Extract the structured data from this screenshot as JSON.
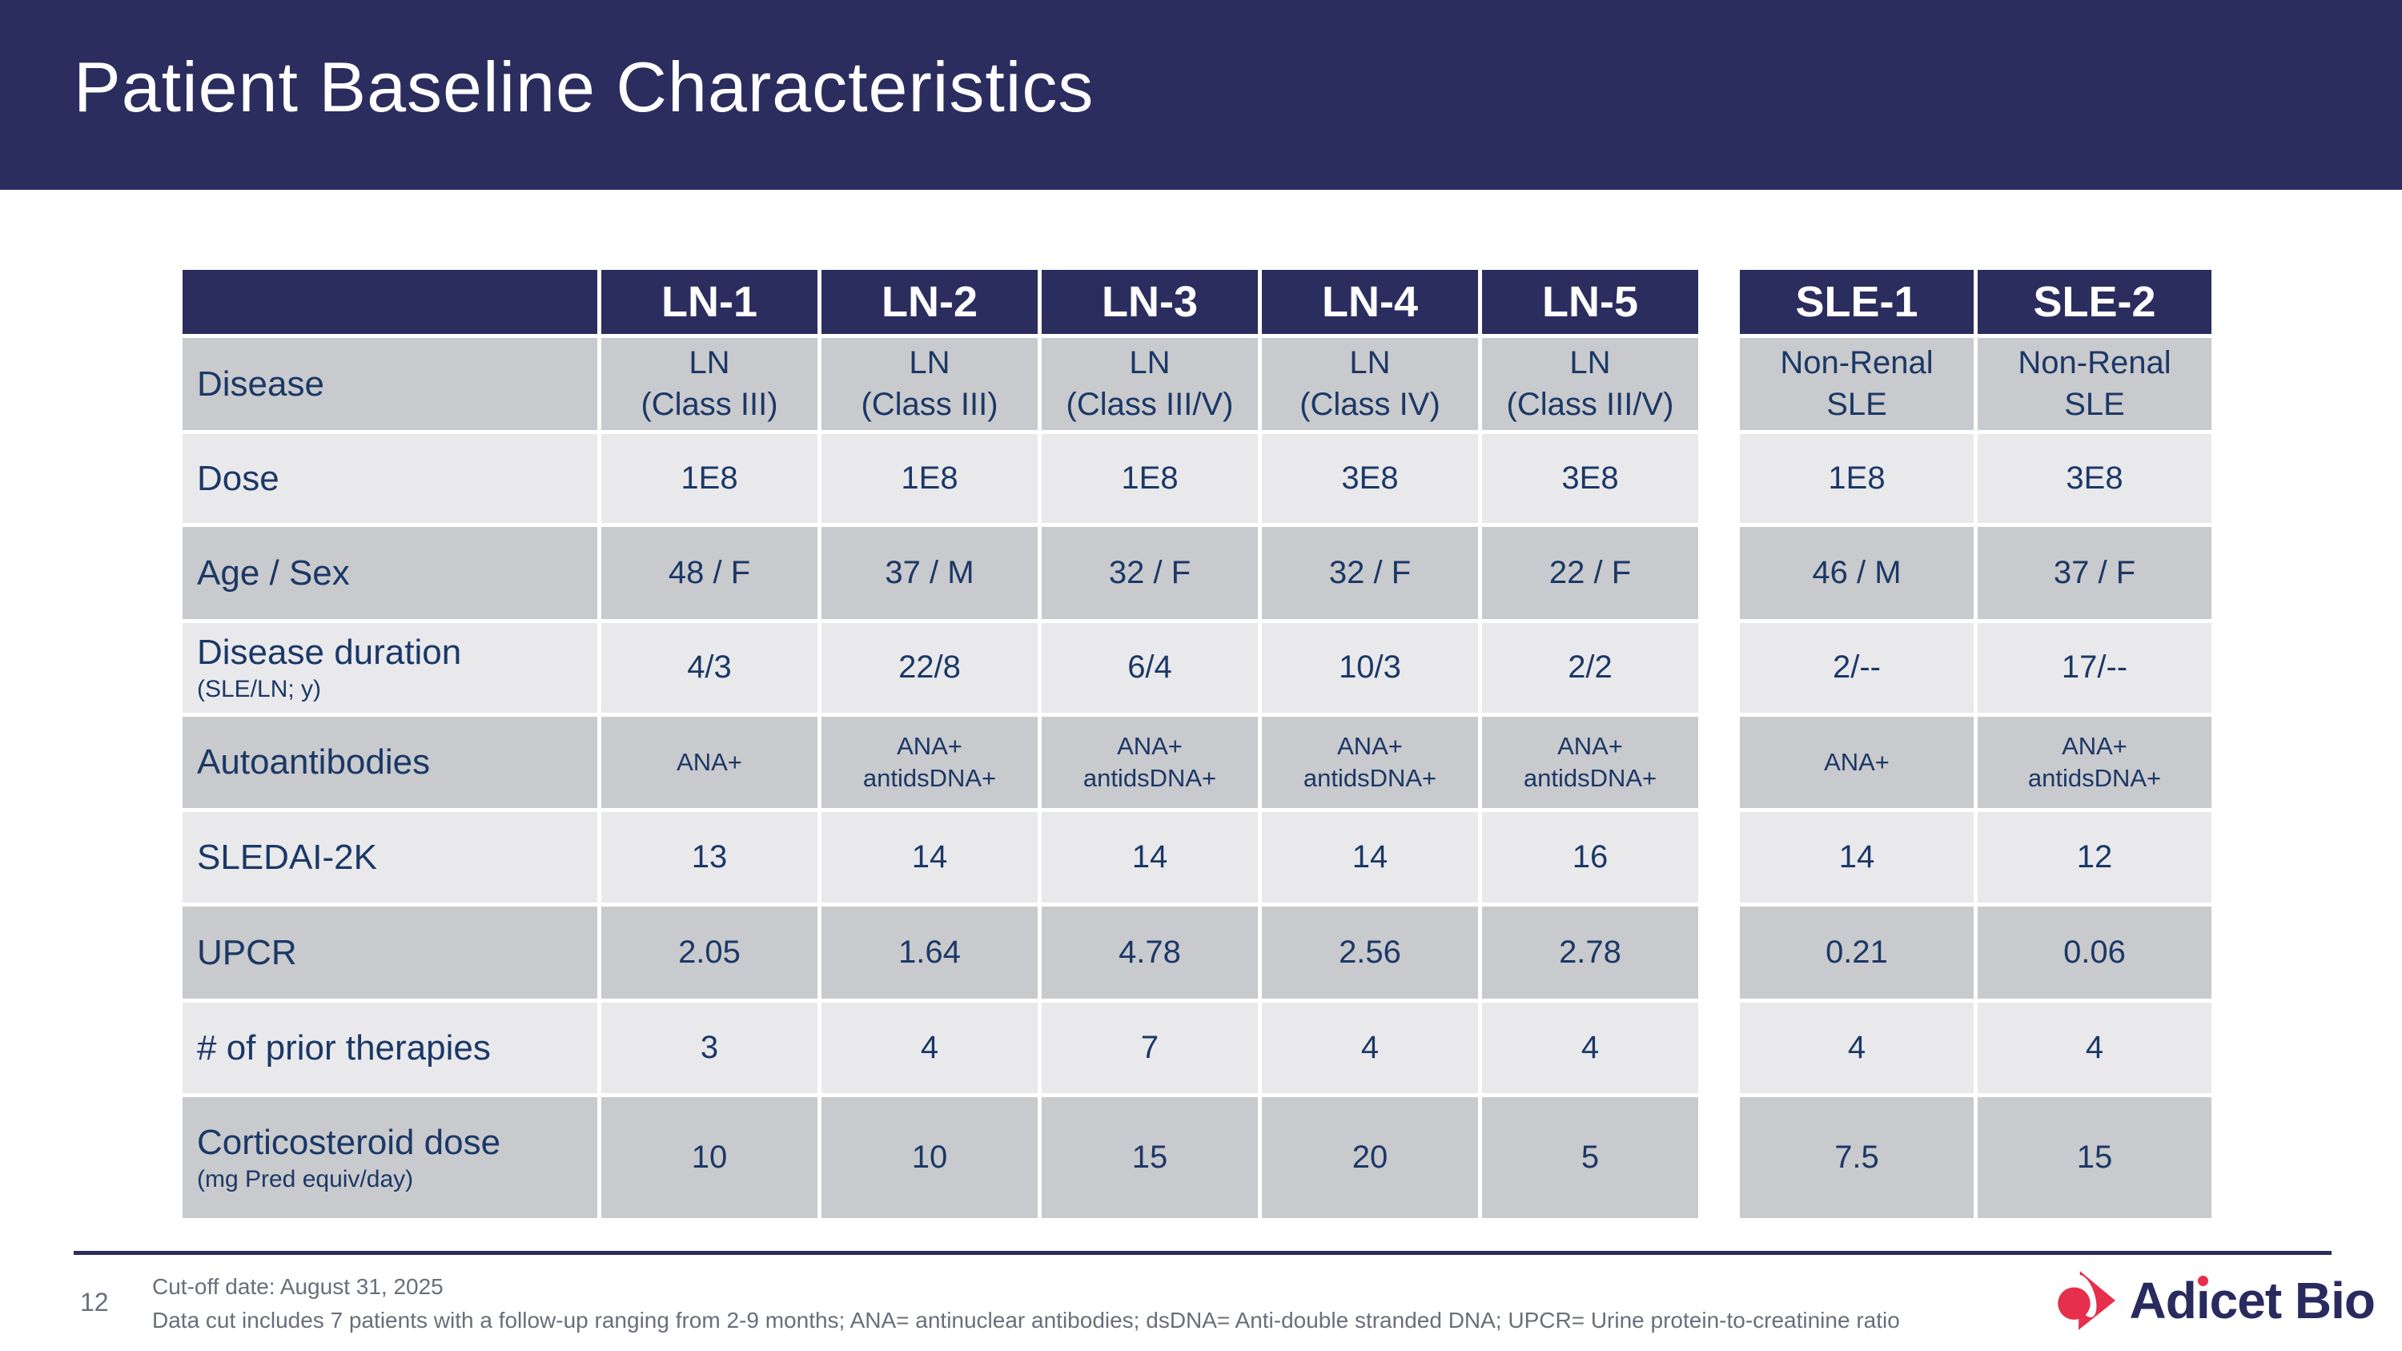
{
  "slide": {
    "title": "Patient Baseline Characteristics"
  },
  "table": {
    "column_headers": [
      "LN-1",
      "LN-2",
      "LN-3",
      "LN-4",
      "LN-5",
      "SLE-1",
      "SLE-2"
    ],
    "rows": [
      {
        "label": "Disease",
        "values": [
          "LN\n(Class III)",
          "LN\n(Class III)",
          "LN\n(Class III/V)",
          "LN\n(Class IV)",
          "LN\n(Class III/V)",
          "Non-Renal\nSLE",
          "Non-Renal\nSLE"
        ]
      },
      {
        "label": "Dose",
        "values": [
          "1E8",
          "1E8",
          "1E8",
          "3E8",
          "3E8",
          "1E8",
          "3E8"
        ]
      },
      {
        "label": "Age / Sex",
        "values": [
          "48 / F",
          "37 / M",
          "32 / F",
          "32 / F",
          "22 / F",
          "46 / M",
          "37 / F"
        ]
      },
      {
        "label": "Disease duration",
        "sublabel": "(SLE/LN; y)",
        "values": [
          "4/3",
          "22/8",
          "6/4",
          "10/3",
          "2/2",
          "2/--",
          "17/--"
        ]
      },
      {
        "label": "Autoantibodies",
        "small_text": true,
        "values": [
          "ANA+",
          "ANA+\nantidsDNA+",
          "ANA+\nantidsDNA+",
          "ANA+\nantidsDNA+",
          "ANA+\nantidsDNA+",
          "ANA+",
          "ANA+\nantidsDNA+"
        ]
      },
      {
        "label": "SLEDAI-2K",
        "values": [
          "13",
          "14",
          "14",
          "14",
          "16",
          "14",
          "12"
        ]
      },
      {
        "label": "UPCR",
        "values": [
          "2.05",
          "1.64",
          "4.78",
          "2.56",
          "2.78",
          "0.21",
          "0.06"
        ]
      },
      {
        "label": "# of prior therapies",
        "values": [
          "3",
          "4",
          "7",
          "4",
          "4",
          "4",
          "4"
        ]
      },
      {
        "label": "Corticosteroid dose",
        "sublabel": "(mg Pred equiv/day)",
        "values": [
          "10",
          "10",
          "15",
          "20",
          "5",
          "7.5",
          "15"
        ]
      }
    ]
  },
  "footer": {
    "page_number": "12",
    "note_line1": "Cut-off date: August 31, 2025",
    "note_line2": "Data cut includes 7 patients with a follow-up ranging from 2-9 months; ANA= antinuclear antibodies; dsDNA= Anti-double stranded DNA; UPCR= Urine protein-to-creatinine ratio",
    "logo": {
      "full_name": "Adicet Bio",
      "part1": "Ad",
      "part2": "ı",
      "part3": "cet Bio"
    }
  },
  "colors": {
    "banner_navy": "#2b2d5e",
    "cell_text_navy": "#1b3866",
    "row_dark_gray": "#c9cacd",
    "row_light_gray": "#e9e9ec",
    "footnote_gray": "#6a6e7a",
    "logo_red": "#e62e4d"
  }
}
